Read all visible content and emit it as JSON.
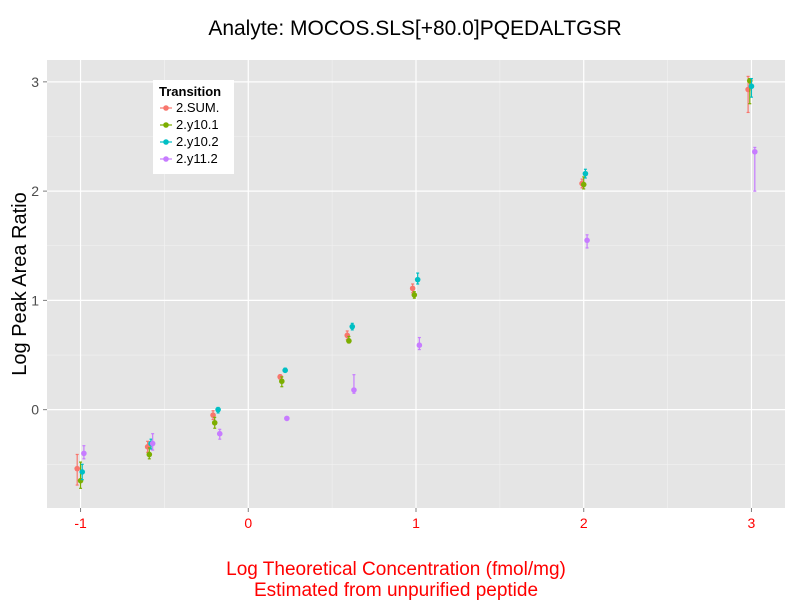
{
  "chart_data": {
    "type": "scatter",
    "title": "Analyte: MOCOS.SLS[+80.0]PQEDALTGSR",
    "xlabel_lines": [
      "Log Theoretical Concentration (fmol/mg)",
      "Estimated from unpurified peptide"
    ],
    "ylabel": "Log Peak Area Ratio",
    "xlim": [
      -1.2,
      3.2
    ],
    "ylim": [
      -0.9,
      3.2
    ],
    "x_ticks": [
      {
        "value": -1,
        "label": "-1"
      },
      {
        "value": 0,
        "label": "0"
      },
      {
        "value": 1,
        "label": "1"
      },
      {
        "value": 2,
        "label": "2"
      },
      {
        "value": 3,
        "label": "3"
      }
    ],
    "y_ticks": [
      {
        "value": 0,
        "label": "0"
      },
      {
        "value": 1,
        "label": "1"
      },
      {
        "value": 2,
        "label": "2"
      },
      {
        "value": 3,
        "label": "3"
      }
    ],
    "grid": true,
    "legend": {
      "title": "Transition",
      "position": "top-left"
    },
    "series": [
      {
        "name": "2.SUM.",
        "color": "#F8766D",
        "points": [
          {
            "x": -1.02,
            "y": -0.54,
            "ymin": -0.69,
            "ymax": -0.41
          },
          {
            "x": -0.6,
            "y": -0.34,
            "ymin": -0.39,
            "ymax": -0.29
          },
          {
            "x": -0.21,
            "y": -0.05,
            "ymin": -0.09,
            "ymax": -0.01
          },
          {
            "x": 0.19,
            "y": 0.3,
            "ymin": 0.28,
            "ymax": 0.32
          },
          {
            "x": 0.59,
            "y": 0.68,
            "ymin": 0.64,
            "ymax": 0.72
          },
          {
            "x": 0.98,
            "y": 1.11,
            "ymin": 1.07,
            "ymax": 1.15
          },
          {
            "x": 1.99,
            "y": 2.07,
            "ymin": 2.03,
            "ymax": 2.11
          },
          {
            "x": 2.98,
            "y": 2.93,
            "ymin": 2.72,
            "ymax": 3.05
          }
        ]
      },
      {
        "name": "2.y10.1",
        "color": "#7CAE00",
        "points": [
          {
            "x": -1.0,
            "y": -0.65,
            "ymin": -0.72,
            "ymax": -0.48
          },
          {
            "x": -0.59,
            "y": -0.41,
            "ymin": -0.45,
            "ymax": -0.35
          },
          {
            "x": -0.2,
            "y": -0.12,
            "ymin": -0.17,
            "ymax": -0.07
          },
          {
            "x": 0.2,
            "y": 0.26,
            "ymin": 0.21,
            "ymax": 0.3
          },
          {
            "x": 0.6,
            "y": 0.63,
            "ymin": 0.61,
            "ymax": 0.67
          },
          {
            "x": 0.99,
            "y": 1.05,
            "ymin": 1.02,
            "ymax": 1.08
          },
          {
            "x": 2.0,
            "y": 2.06,
            "ymin": 2.02,
            "ymax": 2.13
          },
          {
            "x": 2.99,
            "y": 3.01,
            "ymin": 2.8,
            "ymax": 3.03
          }
        ]
      },
      {
        "name": "2.y10.2",
        "color": "#00BFC4",
        "points": [
          {
            "x": -0.99,
            "y": -0.57,
            "ymin": -0.64,
            "ymax": -0.5
          },
          {
            "x": -0.58,
            "y": -0.31,
            "ymin": -0.36,
            "ymax": -0.27
          },
          {
            "x": -0.18,
            "y": 0.0,
            "ymin": -0.03,
            "ymax": 0.02
          },
          {
            "x": 0.22,
            "y": 0.36,
            "ymin": 0.35,
            "ymax": 0.38
          },
          {
            "x": 0.62,
            "y": 0.76,
            "ymin": 0.73,
            "ymax": 0.79
          },
          {
            "x": 1.01,
            "y": 1.19,
            "ymin": 1.15,
            "ymax": 1.25
          },
          {
            "x": 2.01,
            "y": 2.16,
            "ymin": 2.12,
            "ymax": 2.2
          },
          {
            "x": 3.0,
            "y": 2.96,
            "ymin": 2.86,
            "ymax": 3.03
          }
        ]
      },
      {
        "name": "2.y11.2",
        "color": "#C77CFF",
        "points": [
          {
            "x": -0.98,
            "y": -0.4,
            "ymin": -0.45,
            "ymax": -0.33
          },
          {
            "x": -0.57,
            "y": -0.31,
            "ymin": -0.37,
            "ymax": -0.22
          },
          {
            "x": -0.17,
            "y": -0.22,
            "ymin": -0.27,
            "ymax": -0.18
          },
          {
            "x": 0.23,
            "y": -0.08,
            "ymin": -0.09,
            "ymax": -0.07
          },
          {
            "x": 0.63,
            "y": 0.18,
            "ymin": 0.15,
            "ymax": 0.32
          },
          {
            "x": 1.02,
            "y": 0.59,
            "ymin": 0.55,
            "ymax": 0.66
          },
          {
            "x": 2.02,
            "y": 1.55,
            "ymin": 1.48,
            "ymax": 1.6
          },
          {
            "x": 3.02,
            "y": 2.36,
            "ymin": 2.0,
            "ymax": 2.4
          }
        ]
      }
    ]
  },
  "styles": {
    "panel_bg": "#E5E5E5",
    "grid_major": "#FFFFFF",
    "grid_minor": "#F2F2F2",
    "x_axis_text_color": "#FF0000",
    "x_title_color": "#FF0000",
    "y_axis_text_color": "#4D4D4D"
  }
}
